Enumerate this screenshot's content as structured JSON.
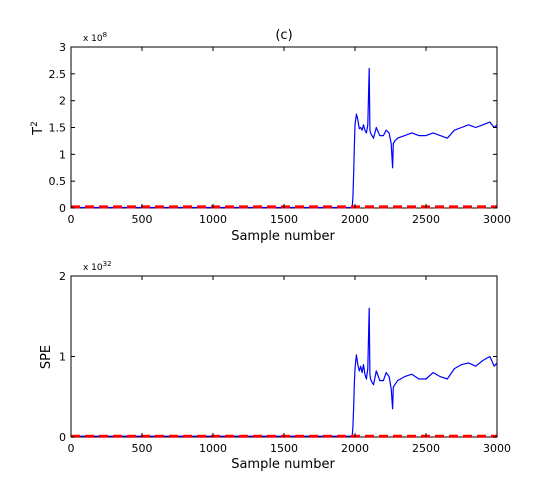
{
  "figure": {
    "title": "(c)",
    "colors": {
      "monitor_line": "#0000ff",
      "control_limit": "#ff0000",
      "axes": "#000000",
      "background": "#ffffff"
    }
  },
  "chart_data": [
    {
      "type": "line",
      "title": "(c)",
      "xlabel": "Sample number",
      "ylabel_base": "T",
      "ylabel_sup": "2",
      "xlim": [
        0,
        3000
      ],
      "ylim": [
        0,
        3
      ],
      "x_ticks": [
        "0",
        "500",
        "1000",
        "1500",
        "2000",
        "2500",
        "3000"
      ],
      "y_ticks": [
        "0",
        "0.5",
        "1",
        "1.5",
        "2",
        "2.5",
        "3"
      ],
      "y_ticks_values": [
        0,
        0.5,
        1,
        1.5,
        2,
        2.5,
        3
      ],
      "y_exponent_base": "x 10",
      "y_exponent_power": "8",
      "grid": false,
      "series": [
        {
          "role": "statistic",
          "color": "#0000ff",
          "style": "solid",
          "x": [
            0,
            1980,
            1985,
            1990,
            1995,
            2000,
            2010,
            2020,
            2030,
            2040,
            2050,
            2060,
            2070,
            2080,
            2090,
            2100,
            2105,
            2110,
            2120,
            2130,
            2150,
            2175,
            2200,
            2220,
            2240,
            2255,
            2265,
            2270,
            2280,
            2300,
            2350,
            2400,
            2450,
            2500,
            2550,
            2600,
            2650,
            2700,
            2750,
            2800,
            2850,
            2900,
            2950,
            2980,
            3000
          ],
          "y": [
            0.01,
            0.01,
            0.2,
            0.6,
            1.1,
            1.55,
            1.75,
            1.65,
            1.48,
            1.5,
            1.45,
            1.55,
            1.45,
            1.4,
            1.55,
            2.6,
            1.45,
            1.4,
            1.35,
            1.3,
            1.5,
            1.35,
            1.35,
            1.45,
            1.4,
            1.2,
            0.75,
            1.2,
            1.25,
            1.3,
            1.35,
            1.4,
            1.35,
            1.35,
            1.4,
            1.35,
            1.3,
            1.45,
            1.5,
            1.55,
            1.5,
            1.55,
            1.6,
            1.5,
            1.55
          ]
        },
        {
          "role": "control-limit",
          "color": "#ff0000",
          "style": "dashed",
          "x": [
            0,
            3000
          ],
          "y": [
            0.02,
            0.02
          ]
        }
      ]
    },
    {
      "type": "line",
      "title": "",
      "xlabel": "Sample number",
      "ylabel_base": "SPE",
      "ylabel_sup": "",
      "xlim": [
        0,
        3000
      ],
      "ylim": [
        0,
        2
      ],
      "x_ticks": [
        "0",
        "500",
        "1000",
        "1500",
        "2000",
        "2500",
        "3000"
      ],
      "y_ticks": [
        "0",
        "1",
        "2"
      ],
      "y_ticks_values": [
        0,
        1,
        2
      ],
      "y_exponent_base": "x 10",
      "y_exponent_power": "32",
      "grid": false,
      "series": [
        {
          "role": "statistic",
          "color": "#0000ff",
          "style": "solid",
          "x": [
            0,
            1980,
            1985,
            1990,
            1995,
            2000,
            2010,
            2020,
            2030,
            2040,
            2050,
            2060,
            2070,
            2080,
            2090,
            2100,
            2105,
            2110,
            2120,
            2130,
            2150,
            2175,
            2200,
            2220,
            2240,
            2255,
            2265,
            2270,
            2280,
            2300,
            2350,
            2400,
            2450,
            2500,
            2550,
            2600,
            2650,
            2700,
            2750,
            2800,
            2850,
            2900,
            2950,
            2980,
            3000
          ],
          "y": [
            0.01,
            0.01,
            0.12,
            0.35,
            0.65,
            0.85,
            1.02,
            0.9,
            0.82,
            0.88,
            0.8,
            0.9,
            0.78,
            0.72,
            0.85,
            1.6,
            0.78,
            0.72,
            0.68,
            0.65,
            0.82,
            0.7,
            0.7,
            0.8,
            0.75,
            0.6,
            0.35,
            0.62,
            0.65,
            0.7,
            0.75,
            0.78,
            0.72,
            0.72,
            0.8,
            0.75,
            0.72,
            0.85,
            0.9,
            0.92,
            0.88,
            0.95,
            1.0,
            0.88,
            0.92
          ]
        },
        {
          "role": "control-limit",
          "color": "#ff0000",
          "style": "dashed",
          "x": [
            0,
            3000
          ],
          "y": [
            0.01,
            0.01
          ]
        }
      ]
    }
  ]
}
